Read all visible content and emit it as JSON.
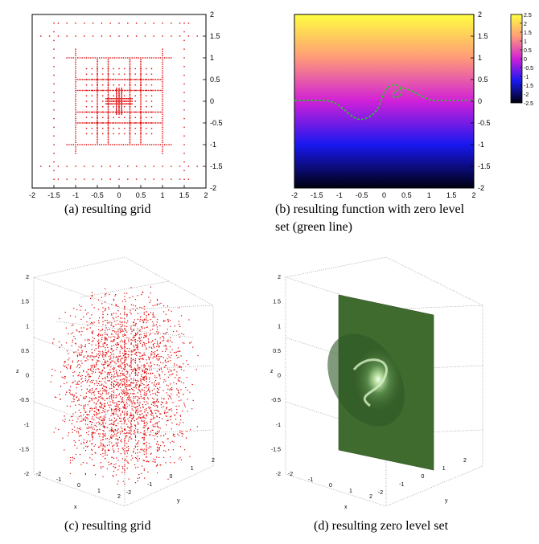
{
  "captions": {
    "a": "(a)  resulting grid",
    "b_line1": "(b)  resulting function with zero level",
    "b_line2": "set (green line)",
    "c": "(c)  resulting grid",
    "d": "(d)  resulting zero level set"
  },
  "panel_a": {
    "xticks": [
      "-2",
      "-1.5",
      "-1",
      "-0.5",
      "0",
      "0.5",
      "1",
      "1.5",
      "2"
    ],
    "yticks": [
      "2",
      "1.5",
      "1",
      "0.5",
      "0",
      "-0.5",
      "-1",
      "-1.5",
      "-2"
    ],
    "range": [
      -2,
      2
    ],
    "marker_color": "#e00000"
  },
  "panel_b": {
    "xticks": [
      "-2",
      "-1.5",
      "-1",
      "-0.5",
      "0",
      "0.5",
      "1",
      "1.5",
      "2"
    ],
    "yticks": [
      "2",
      "1.5",
      "1",
      "0.5",
      "0",
      "-0.5",
      "-1",
      "-1.5",
      "-2"
    ],
    "colorbar_ticks": [
      "2.5",
      "2",
      "1.5",
      "1",
      "0.5",
      "0",
      "-0.5",
      "-1",
      "-1.5",
      "-2",
      "-2.5"
    ],
    "colorbar_range": [
      -2.5,
      2.5
    ],
    "zero_line_color": "#22cc22"
  },
  "panel_c": {
    "zticks": [
      "2",
      "1.5",
      "1",
      "0.5",
      "0",
      "-0.5",
      "-1",
      "-1.5",
      "-2"
    ],
    "xticks": [
      "-2",
      "-1",
      "0",
      "1",
      "2"
    ],
    "yticks": [
      "-2",
      "-1",
      "0",
      "1",
      "2"
    ],
    "xlabel": "x",
    "ylabel": "y",
    "zlabel": "z"
  },
  "panel_d": {
    "zticks": [
      "2",
      "1.5",
      "1",
      "0.5",
      "0",
      "-0.5",
      "-1",
      "-1.5",
      "-2"
    ],
    "xticks": [
      "-2",
      "-1",
      "0",
      "1",
      "2"
    ],
    "yticks": [
      "-2",
      "-1",
      "0",
      "1",
      "2"
    ],
    "xlabel": "x",
    "ylabel": "y",
    "zlabel": "z",
    "surface_color": "#3f6b2e"
  }
}
